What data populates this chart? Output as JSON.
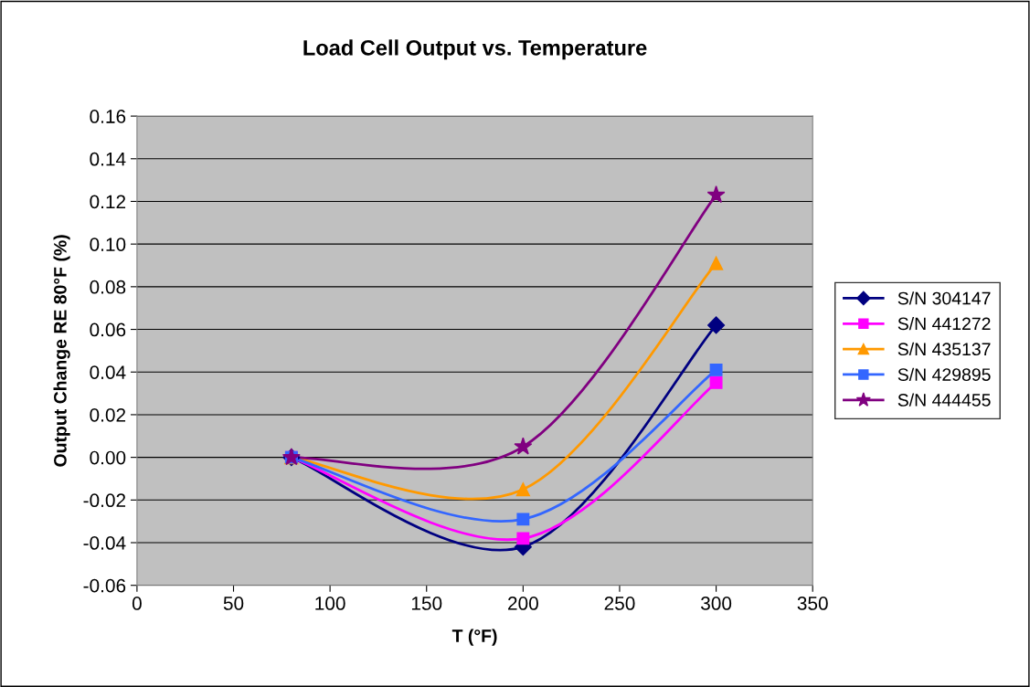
{
  "chart_data": {
    "type": "line",
    "title": "Load Cell Output vs. Temperature",
    "xlabel": "T (°F)",
    "ylabel": "Output Change RE 80°F (%)",
    "x": [
      80,
      200,
      300
    ],
    "series": [
      {
        "name": "S/N 304147",
        "color": "#000080",
        "marker": "diamond",
        "values": [
          0,
          -0.042,
          0.062
        ]
      },
      {
        "name": "S/N 441272",
        "color": "#ff00ff",
        "marker": "square",
        "values": [
          0,
          -0.038,
          0.035
        ]
      },
      {
        "name": "S/N 435137",
        "color": "#ff9900",
        "marker": "triangle",
        "values": [
          0,
          -0.015,
          0.091
        ]
      },
      {
        "name": "S/N 429895",
        "color": "#3366ff",
        "marker": "square",
        "values": [
          0,
          -0.029,
          0.041
        ]
      },
      {
        "name": "S/N 444455",
        "color": "#800080",
        "marker": "star",
        "values": [
          0,
          0.005,
          0.123
        ]
      }
    ],
    "xlim": [
      0,
      350
    ],
    "xticks": [
      0,
      50,
      100,
      150,
      200,
      250,
      300,
      350
    ],
    "ylim": [
      -0.06,
      0.16
    ],
    "yticks": [
      {
        "value": -0.06,
        "label": "-0.06"
      },
      {
        "value": -0.04,
        "label": "-0.04"
      },
      {
        "value": -0.02,
        "label": "-0.02"
      },
      {
        "value": 0,
        "label": "0.00"
      },
      {
        "value": 0.02,
        "label": "0.02"
      },
      {
        "value": 0.04,
        "label": "0.04"
      },
      {
        "value": 0.06,
        "label": "0.06"
      },
      {
        "value": 0.08,
        "label": "0.08"
      },
      {
        "value": 0.1,
        "label": "0.10"
      },
      {
        "value": 0.12,
        "label": "0.12"
      },
      {
        "value": 0.14,
        "label": "0.14"
      },
      {
        "value": 0.16,
        "label": "0.16"
      }
    ],
    "grid": "y",
    "legend": "right",
    "line_style": "solid"
  }
}
